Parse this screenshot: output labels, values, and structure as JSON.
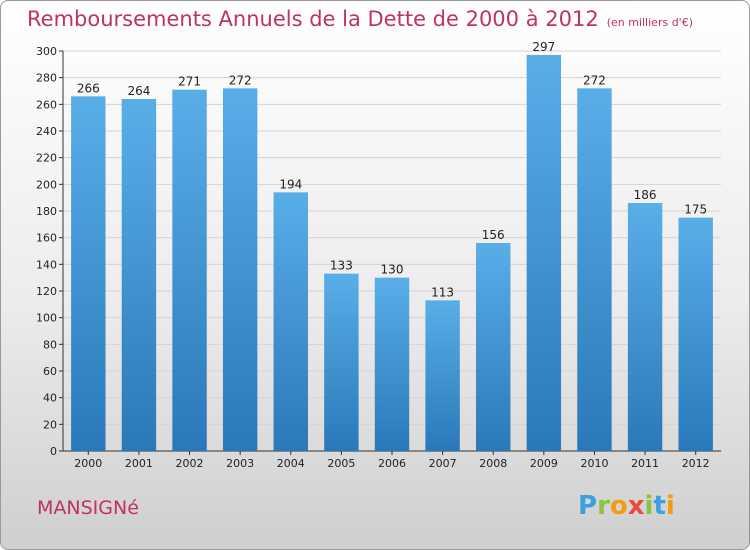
{
  "chart_data": {
    "type": "bar",
    "title": "Remboursements Annuels de la Dette de 2000 à 2012",
    "subtitle": "(en milliers d'€)",
    "categories": [
      "2000",
      "2001",
      "2002",
      "2003",
      "2004",
      "2005",
      "2006",
      "2007",
      "2008",
      "2009",
      "2010",
      "2011",
      "2012"
    ],
    "values": [
      266,
      264,
      271,
      272,
      194,
      133,
      130,
      113,
      156,
      297,
      272,
      186,
      175
    ],
    "ylim": [
      0,
      300
    ],
    "yticks": [
      0,
      20,
      40,
      60,
      80,
      100,
      120,
      140,
      160,
      180,
      200,
      220,
      240,
      260,
      280,
      300
    ],
    "xlabel": "",
    "ylabel": "",
    "grid": true,
    "colors": {
      "bar_top": "#5aaee8",
      "bar_bottom": "#2a78b8",
      "title": "#c0335e"
    }
  },
  "footer": {
    "city": "MANSIGNé",
    "logo_letters": [
      "P",
      "r",
      "o",
      "x",
      "i",
      "t",
      "i"
    ],
    "logo_colors": [
      "#3aa0e0",
      "#8bc53f",
      "#f39c12",
      "#e74c3c",
      "#8bc53f",
      "#3aa0e0",
      "#f39c12"
    ]
  }
}
